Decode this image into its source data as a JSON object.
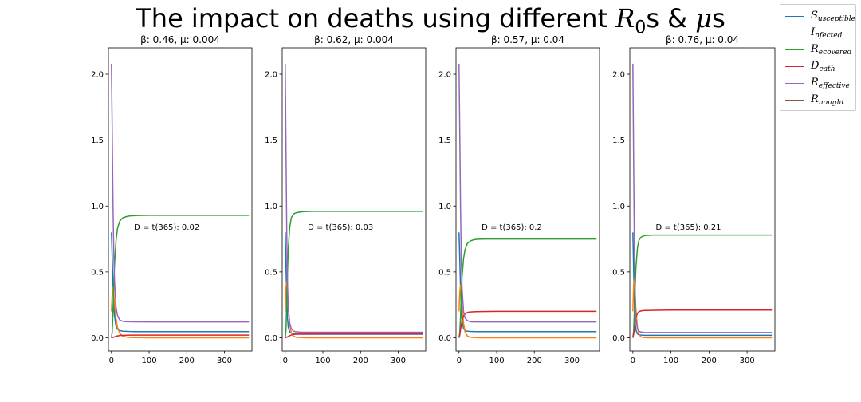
{
  "figure": {
    "title_prefix": "The impact on deaths using different ",
    "title_r": "R",
    "title_r_sub": "0",
    "title_mid": "s & ",
    "title_mu": "μ",
    "title_suffix": "s"
  },
  "legend": [
    {
      "main": "S",
      "sub": "usceptible",
      "color": "#1f77b4"
    },
    {
      "main": "I",
      "sub": "nfected",
      "color": "#ff7f0e"
    },
    {
      "main": "R",
      "sub": "ecovered",
      "color": "#2ca02c"
    },
    {
      "main": "D",
      "sub": "eath",
      "color": "#d62728"
    },
    {
      "main": "R",
      "sub": "effective",
      "color": "#9467bd"
    },
    {
      "main": "R",
      "sub": "nought",
      "color": "#8c564b"
    }
  ],
  "chart_data": [
    {
      "type": "line",
      "title": "β: 0.46, μ: 0.004",
      "annotation": "D = t(365): 0.02",
      "xlim": [
        -8,
        373
      ],
      "ylim": [
        -0.1,
        2.2
      ],
      "xticks": [
        0,
        100,
        200,
        300
      ],
      "yticks": [
        0.0,
        0.5,
        1.0,
        1.5,
        2.0
      ],
      "series": [
        {
          "name": "Susceptible",
          "color": "#1f77b4",
          "x": [
            0,
            2,
            4,
            6,
            8,
            12,
            16,
            22,
            30,
            45,
            60,
            100,
            200,
            365
          ],
          "y": [
            0.8,
            0.62,
            0.42,
            0.27,
            0.17,
            0.09,
            0.065,
            0.055,
            0.05,
            0.048,
            0.047,
            0.047,
            0.047,
            0.047
          ]
        },
        {
          "name": "Infected",
          "color": "#ff7f0e",
          "x": [
            0,
            2,
            4,
            6,
            8,
            12,
            16,
            22,
            30,
            45,
            60,
            100,
            200,
            365
          ],
          "y": [
            0.2,
            0.33,
            0.38,
            0.34,
            0.27,
            0.15,
            0.08,
            0.035,
            0.012,
            0.003,
            0.001,
            0.0,
            0.0,
            0.0
          ]
        },
        {
          "name": "Recovered",
          "color": "#2ca02c",
          "x": [
            0,
            2,
            4,
            6,
            8,
            12,
            16,
            22,
            30,
            40,
            50,
            70,
            100,
            200,
            365
          ],
          "y": [
            0.0,
            0.04,
            0.19,
            0.38,
            0.54,
            0.73,
            0.83,
            0.885,
            0.91,
            0.92,
            0.925,
            0.928,
            0.93,
            0.93,
            0.93
          ]
        },
        {
          "name": "Death",
          "color": "#d62728",
          "x": [
            0,
            4,
            8,
            12,
            18,
            25,
            35,
            50,
            100,
            365
          ],
          "y": [
            0.0,
            0.003,
            0.007,
            0.011,
            0.015,
            0.018,
            0.019,
            0.02,
            0.02,
            0.02
          ]
        },
        {
          "name": "Reffective",
          "color": "#9467bd",
          "x": [
            0,
            2,
            4,
            6,
            8,
            12,
            16,
            22,
            30,
            40,
            60,
            100,
            200,
            365
          ],
          "y": [
            2.08,
            1.6,
            1.05,
            0.68,
            0.44,
            0.24,
            0.17,
            0.135,
            0.125,
            0.122,
            0.121,
            0.12,
            0.12,
            0.12
          ]
        }
      ]
    },
    {
      "type": "line",
      "title": "β: 0.62, μ: 0.004",
      "annotation": "D = t(365): 0.03",
      "xlim": [
        -8,
        373
      ],
      "ylim": [
        -0.1,
        2.2
      ],
      "xticks": [
        0,
        100,
        200,
        300
      ],
      "yticks": [
        0.0,
        0.5,
        1.0,
        1.5,
        2.0
      ],
      "series": [
        {
          "name": "Susceptible",
          "color": "#1f77b4",
          "x": [
            0,
            2,
            4,
            6,
            8,
            12,
            16,
            22,
            30,
            45,
            60,
            100,
            200,
            365
          ],
          "y": [
            0.8,
            0.55,
            0.3,
            0.15,
            0.08,
            0.045,
            0.035,
            0.03,
            0.028,
            0.027,
            0.027,
            0.027,
            0.027,
            0.027
          ]
        },
        {
          "name": "Infected",
          "color": "#ff7f0e",
          "x": [
            0,
            2,
            4,
            6,
            8,
            12,
            16,
            22,
            30,
            45,
            60,
            100,
            200,
            365
          ],
          "y": [
            0.2,
            0.38,
            0.43,
            0.35,
            0.24,
            0.1,
            0.04,
            0.012,
            0.003,
            0.001,
            0.0,
            0.0,
            0.0,
            0.0
          ]
        },
        {
          "name": "Recovered",
          "color": "#2ca02c",
          "x": [
            0,
            2,
            4,
            6,
            8,
            12,
            16,
            22,
            30,
            40,
            50,
            70,
            100,
            200,
            365
          ],
          "y": [
            0.0,
            0.06,
            0.26,
            0.49,
            0.67,
            0.84,
            0.91,
            0.94,
            0.95,
            0.955,
            0.958,
            0.96,
            0.96,
            0.96,
            0.96
          ]
        },
        {
          "name": "Death",
          "color": "#d62728",
          "x": [
            0,
            4,
            8,
            12,
            18,
            25,
            35,
            50,
            100,
            365
          ],
          "y": [
            0.0,
            0.004,
            0.01,
            0.016,
            0.022,
            0.026,
            0.028,
            0.029,
            0.03,
            0.03
          ]
        },
        {
          "name": "Reffective",
          "color": "#9467bd",
          "x": [
            0,
            2,
            4,
            6,
            8,
            12,
            16,
            22,
            30,
            40,
            60,
            100,
            200,
            365
          ],
          "y": [
            2.08,
            1.45,
            0.8,
            0.42,
            0.22,
            0.11,
            0.07,
            0.05,
            0.045,
            0.043,
            0.042,
            0.042,
            0.042,
            0.042
          ]
        }
      ]
    },
    {
      "type": "line",
      "title": "β: 0.57, μ: 0.04",
      "annotation": "D = t(365): 0.2",
      "xlim": [
        -8,
        373
      ],
      "ylim": [
        -0.1,
        2.2
      ],
      "xticks": [
        0,
        100,
        200,
        300
      ],
      "yticks": [
        0.0,
        0.5,
        1.0,
        1.5,
        2.0
      ],
      "series": [
        {
          "name": "Susceptible",
          "color": "#1f77b4",
          "x": [
            0,
            2,
            4,
            6,
            8,
            12,
            16,
            22,
            30,
            45,
            60,
            100,
            200,
            365
          ],
          "y": [
            0.8,
            0.6,
            0.38,
            0.22,
            0.13,
            0.07,
            0.055,
            0.05,
            0.048,
            0.047,
            0.047,
            0.047,
            0.047,
            0.047
          ]
        },
        {
          "name": "Infected",
          "color": "#ff7f0e",
          "x": [
            0,
            2,
            4,
            6,
            8,
            12,
            16,
            22,
            30,
            45,
            60,
            100,
            200,
            365
          ],
          "y": [
            0.2,
            0.35,
            0.4,
            0.34,
            0.24,
            0.11,
            0.045,
            0.014,
            0.004,
            0.001,
            0.0,
            0.0,
            0.0,
            0.0
          ]
        },
        {
          "name": "Recovered",
          "color": "#2ca02c",
          "x": [
            0,
            2,
            4,
            6,
            8,
            12,
            16,
            22,
            30,
            40,
            50,
            70,
            100,
            200,
            365
          ],
          "y": [
            0.0,
            0.04,
            0.16,
            0.33,
            0.46,
            0.6,
            0.67,
            0.715,
            0.735,
            0.745,
            0.748,
            0.75,
            0.75,
            0.75,
            0.75
          ]
        },
        {
          "name": "Death",
          "color": "#d62728",
          "x": [
            0,
            2,
            4,
            6,
            8,
            12,
            16,
            22,
            30,
            45,
            60,
            100,
            365
          ],
          "y": [
            0.0,
            0.02,
            0.06,
            0.1,
            0.13,
            0.165,
            0.182,
            0.192,
            0.196,
            0.198,
            0.199,
            0.2,
            0.2
          ]
        },
        {
          "name": "Reffective",
          "color": "#9467bd",
          "x": [
            0,
            2,
            4,
            6,
            8,
            12,
            16,
            22,
            30,
            40,
            60,
            100,
            200,
            365
          ],
          "y": [
            2.08,
            1.55,
            0.98,
            0.6,
            0.38,
            0.2,
            0.15,
            0.13,
            0.122,
            0.12,
            0.12,
            0.12,
            0.12,
            0.12
          ]
        }
      ]
    },
    {
      "type": "line",
      "title": "β: 0.76, μ: 0.04",
      "annotation": "D = t(365): 0.21",
      "xlim": [
        -8,
        373
      ],
      "ylim": [
        -0.1,
        2.2
      ],
      "xticks": [
        0,
        100,
        200,
        300
      ],
      "yticks": [
        0.0,
        0.5,
        1.0,
        1.5,
        2.0
      ],
      "series": [
        {
          "name": "Susceptible",
          "color": "#1f77b4",
          "x": [
            0,
            2,
            4,
            6,
            8,
            12,
            16,
            22,
            30,
            45,
            60,
            100,
            200,
            365
          ],
          "y": [
            0.8,
            0.52,
            0.26,
            0.12,
            0.06,
            0.03,
            0.022,
            0.02,
            0.019,
            0.019,
            0.019,
            0.019,
            0.019,
            0.019
          ]
        },
        {
          "name": "Infected",
          "color": "#ff7f0e",
          "x": [
            0,
            2,
            4,
            6,
            8,
            12,
            16,
            22,
            30,
            45,
            60,
            100,
            200,
            365
          ],
          "y": [
            0.2,
            0.4,
            0.44,
            0.35,
            0.22,
            0.08,
            0.025,
            0.006,
            0.001,
            0.0,
            0.0,
            0.0,
            0.0,
            0.0
          ]
        },
        {
          "name": "Recovered",
          "color": "#2ca02c",
          "x": [
            0,
            2,
            4,
            6,
            8,
            12,
            16,
            22,
            30,
            40,
            50,
            70,
            100,
            200,
            365
          ],
          "y": [
            0.0,
            0.05,
            0.2,
            0.38,
            0.53,
            0.68,
            0.74,
            0.765,
            0.775,
            0.778,
            0.78,
            0.78,
            0.78,
            0.78,
            0.78
          ]
        },
        {
          "name": "Death",
          "color": "#d62728",
          "x": [
            0,
            2,
            4,
            6,
            8,
            12,
            16,
            22,
            30,
            45,
            60,
            100,
            365
          ],
          "y": [
            0.0,
            0.025,
            0.07,
            0.12,
            0.15,
            0.185,
            0.198,
            0.204,
            0.207,
            0.208,
            0.209,
            0.21,
            0.21
          ]
        },
        {
          "name": "Reffective",
          "color": "#9467bd",
          "x": [
            0,
            2,
            4,
            6,
            8,
            12,
            16,
            22,
            30,
            40,
            60,
            100,
            200,
            365
          ],
          "y": [
            2.08,
            1.35,
            0.68,
            0.32,
            0.15,
            0.07,
            0.05,
            0.043,
            0.041,
            0.04,
            0.04,
            0.04,
            0.04,
            0.04
          ]
        }
      ]
    }
  ]
}
